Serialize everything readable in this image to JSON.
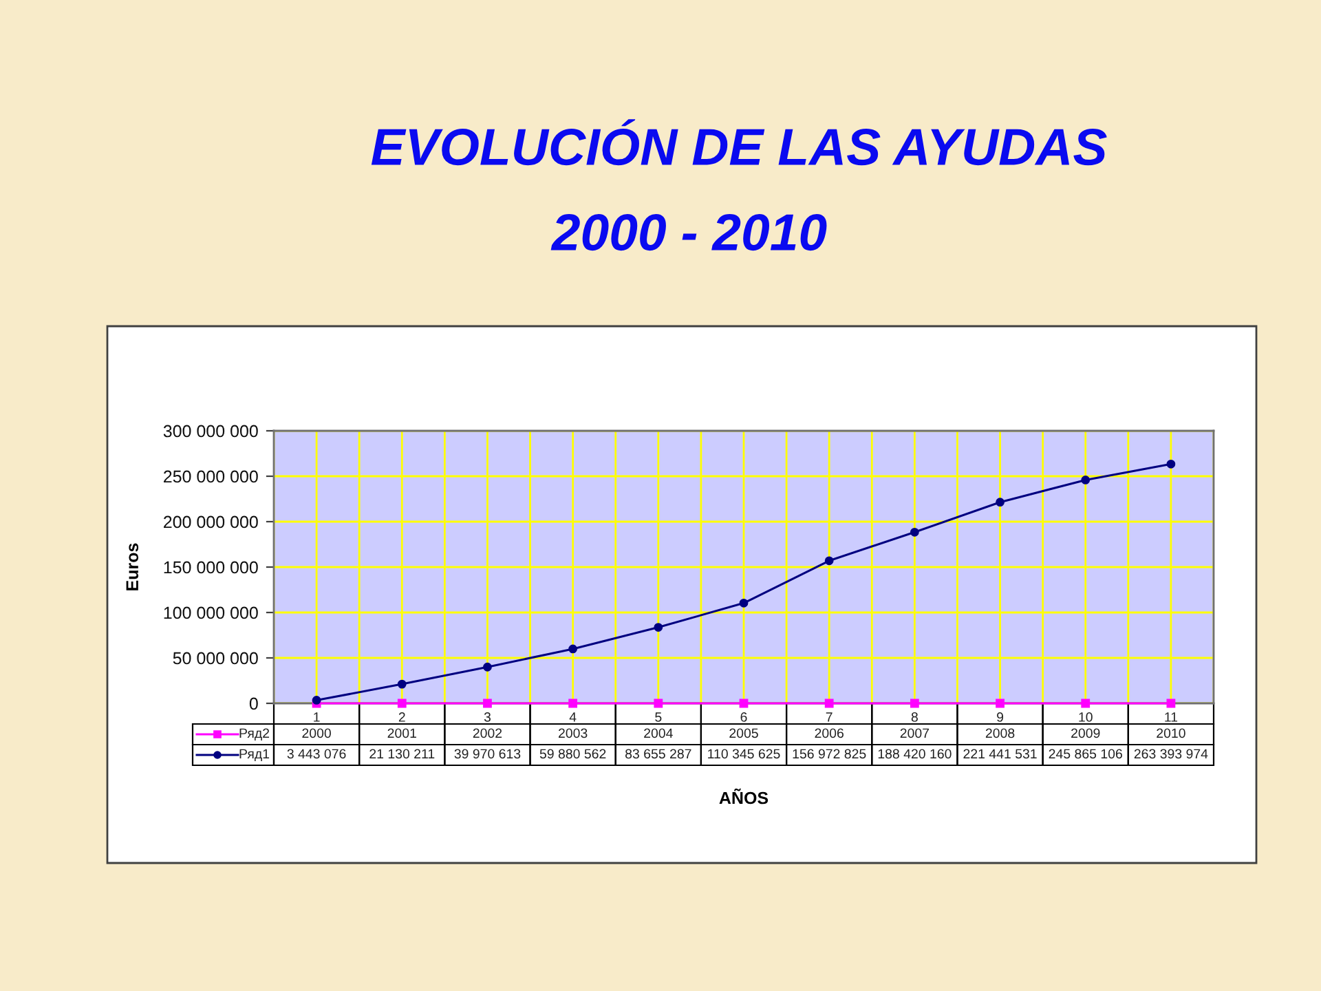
{
  "chart_data": {
    "type": "line",
    "title": "EVOLUCIÓN DE LAS AYUDAS",
    "subtitle": "2000 - 2010",
    "xlabel": "AÑOS",
    "ylabel": "Euros",
    "categories": [
      "1",
      "2",
      "3",
      "4",
      "5",
      "6",
      "7",
      "8",
      "9",
      "10",
      "11"
    ],
    "series": [
      {
        "name": "Ряд2",
        "color": "#ff00ff",
        "marker": "square",
        "values": [
          2000,
          2001,
          2002,
          2003,
          2004,
          2005,
          2006,
          2007,
          2008,
          2009,
          2010
        ],
        "value_labels": [
          "2000",
          "2001",
          "2002",
          "2003",
          "2004",
          "2005",
          "2006",
          "2007",
          "2008",
          "2009",
          "2010"
        ]
      },
      {
        "name": "Ряд1",
        "color": "#000080",
        "marker": "circle",
        "values": [
          3443076,
          21130211,
          39970613,
          59880562,
          83655287,
          110345625,
          156972825,
          188420160,
          221441531,
          245865106,
          263393974
        ],
        "value_labels": [
          "3 443 076",
          "21 130 211",
          "39 970 613",
          "59 880 562",
          "83 655 287",
          "110 345 625",
          "156 972 825",
          "188 420 160",
          "221 441 531",
          "245 865 106",
          "263 393 974"
        ]
      }
    ],
    "ylim": [
      0,
      300000000
    ],
    "yticks": [
      0,
      {
        "value": 50000000,
        "label": "50 000 000"
      },
      {
        "value": 100000000,
        "label": "100 000 000"
      },
      {
        "value": 150000000,
        "label": "150 000 000"
      },
      {
        "value": 200000000,
        "label": "200 000 000"
      },
      {
        "value": 250000000,
        "label": "250 000 000"
      },
      {
        "value": 300000000,
        "label": "300 000 000"
      }
    ],
    "grid": true,
    "legend": "bottom"
  }
}
